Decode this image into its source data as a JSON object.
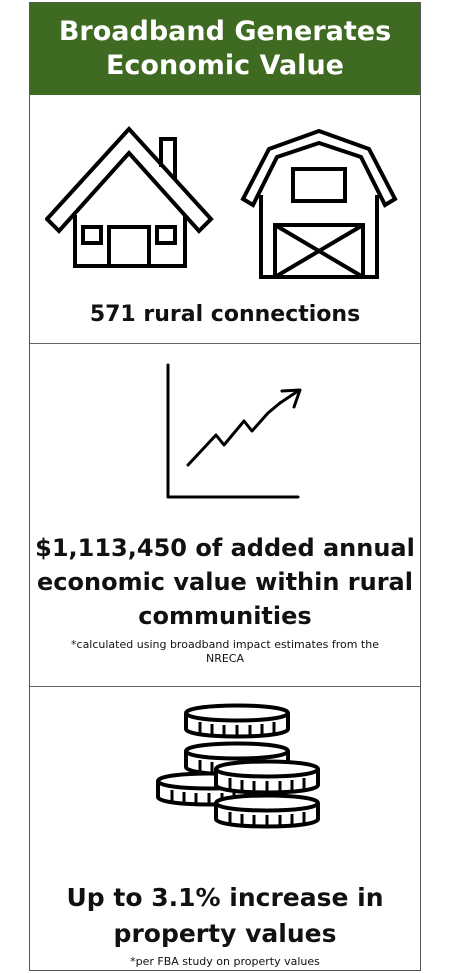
{
  "header": {
    "title_line1": "Broadband Generates",
    "title_line2": "Economic Value",
    "background_color": "#3f6a22",
    "text_color": "#ffffff"
  },
  "section1": {
    "icons": [
      "house-icon",
      "barn-icon"
    ],
    "caption": "571 rural connections"
  },
  "section2": {
    "icons": [
      "growth-chart-icon"
    ],
    "caption_line1": "$1,113,450 of added annual",
    "caption_line2": "economic value within rural",
    "caption_line3": "communities",
    "footnote_line1": "*calculated using broadband impact estimates from the",
    "footnote_line2": "NRECA"
  },
  "section3": {
    "icons": [
      "coins-icon"
    ],
    "caption_line1": "Up to 3.1% increase in",
    "caption_line2": "property values",
    "footnote": "*per FBA study on property values"
  }
}
